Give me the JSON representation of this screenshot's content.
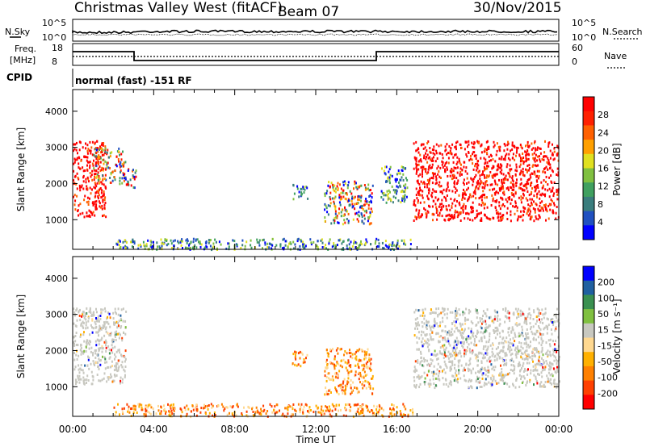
{
  "header": {
    "station": "Christmas Valley West (fitACF)",
    "beam": "Beam 07",
    "date": "30/Nov/2015"
  },
  "noise_panel": {
    "left_label": "N.Sky",
    "left_ticks": [
      "10^5",
      "10^0"
    ],
    "right_label": "N.Search",
    "right_ticks": [
      "10^5",
      "10^0"
    ]
  },
  "freq_panel": {
    "left_label_line1": "Freq.",
    "left_label_line2": "[MHz]",
    "left_ticks": [
      "18",
      "8"
    ],
    "right_label": "Nave",
    "right_ticks": [
      "60",
      "0"
    ],
    "cpid_label": "CPID",
    "cpid_text": "normal (fast) -151 RF"
  },
  "legends": {
    "power": {
      "label": "Power [dB]",
      "ticks": [
        "28",
        "24",
        "20",
        "16",
        "12",
        "8",
        "4"
      ],
      "colors": [
        "#0000ff",
        "#2050c0",
        "#3a7d7d",
        "#40a060",
        "#80c040",
        "#e0e020",
        "#ffa000",
        "#ff6000",
        "#ff2000",
        "#ff0000"
      ]
    },
    "velocity": {
      "label": "Velocity [m s⁻¹]",
      "ticks": [
        "200",
        "100",
        "50",
        "15",
        "-15",
        "-50",
        "-100",
        "-200"
      ],
      "colors": [
        "#ff0000",
        "#ff4000",
        "#ff8000",
        "#ffb000",
        "#ffd890",
        "#c8c8c0",
        "#80c040",
        "#3a9050",
        "#2060a0",
        "#0000ff"
      ]
    }
  },
  "chart_data": [
    {
      "type": "heatmap",
      "panel": "power",
      "ylabel": "Slant Range [km]",
      "yticks": [
        1000,
        2000,
        3000,
        4000
      ],
      "ylim": [
        180,
        4600
      ],
      "xlim_hours": [
        0,
        24
      ],
      "blobs": [
        {
          "t": [
            0.0,
            1.6
          ],
          "r": [
            1100,
            3200
          ],
          "class": "strong"
        },
        {
          "t": [
            1.0,
            2.6
          ],
          "r": [
            2000,
            3000
          ],
          "class": "mixed"
        },
        {
          "t": [
            2.6,
            3.1
          ],
          "r": [
            1900,
            2500
          ],
          "class": "mixed"
        },
        {
          "t": [
            10.8,
            11.6
          ],
          "r": [
            1600,
            2000
          ],
          "class": "weak"
        },
        {
          "t": [
            12.4,
            14.8
          ],
          "r": [
            900,
            2100
          ],
          "class": "mixed"
        },
        {
          "t": [
            15.2,
            16.5
          ],
          "r": [
            1500,
            2500
          ],
          "class": "weak"
        },
        {
          "t": [
            16.8,
            24.0
          ],
          "r": [
            1000,
            3200
          ],
          "class": "strong"
        },
        {
          "t": [
            2.0,
            16.8
          ],
          "r": [
            200,
            500
          ],
          "class": "weak"
        }
      ]
    },
    {
      "type": "heatmap",
      "panel": "velocity",
      "ylabel": "Slant Range [km]",
      "yticks": [
        1000,
        2000,
        3000,
        4000
      ],
      "ylim": [
        180,
        4600
      ],
      "xlabel": "Time UT",
      "xticks": [
        "00:00",
        "04:00",
        "08:00",
        "12:00",
        "16:00",
        "20:00",
        "00:00"
      ],
      "xlim_hours": [
        0,
        24
      ],
      "blobs": [
        {
          "t": [
            0.0,
            2.6
          ],
          "r": [
            1100,
            3200
          ],
          "class": "ground"
        },
        {
          "t": [
            10.8,
            11.6
          ],
          "r": [
            1600,
            2000
          ],
          "class": "neg"
        },
        {
          "t": [
            12.4,
            14.8
          ],
          "r": [
            800,
            2100
          ],
          "class": "neg"
        },
        {
          "t": [
            16.8,
            24.0
          ],
          "r": [
            1000,
            3200
          ],
          "class": "ground"
        },
        {
          "t": [
            2.0,
            16.8
          ],
          "r": [
            200,
            550
          ],
          "class": "neg"
        }
      ]
    }
  ]
}
